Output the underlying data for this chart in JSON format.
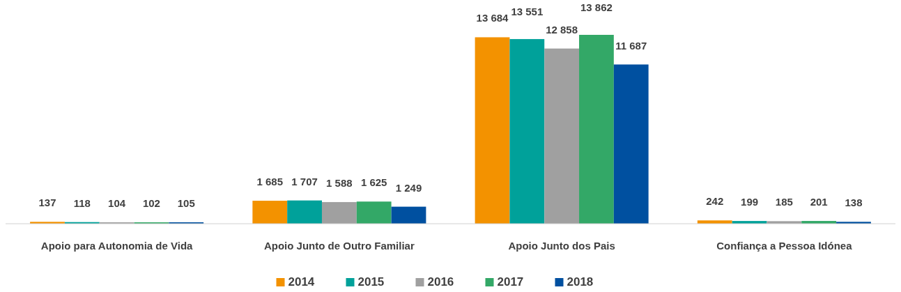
{
  "chart_data": {
    "type": "bar",
    "categories": [
      "Apoio para Autonomia de Vida",
      "Apoio Junto de Outro Familiar",
      "Apoio Junto dos Pais",
      "Confiança a Pessoa Idónea"
    ],
    "series": [
      {
        "name": "2014",
        "color": "#f39200",
        "values": [
          137,
          1685,
          13684,
          242
        ],
        "value_labels": [
          "137",
          "1 685",
          "13 684",
          "242"
        ]
      },
      {
        "name": "2015",
        "color": "#00a19a",
        "values": [
          118,
          1707,
          13551,
          199
        ],
        "value_labels": [
          "118",
          "1 707",
          "13 551",
          "199"
        ]
      },
      {
        "name": "2016",
        "color": "#a0a0a0",
        "values": [
          104,
          1588,
          12858,
          185
        ],
        "value_labels": [
          "104",
          "1 588",
          "12 858",
          "185"
        ]
      },
      {
        "name": "2017",
        "color": "#33a867",
        "values": [
          102,
          1625,
          13862,
          201
        ],
        "value_labels": [
          "102",
          "1 625",
          "13 862",
          "201"
        ]
      },
      {
        "name": "2018",
        "color": "#0050a0",
        "values": [
          105,
          1249,
          11687,
          138
        ],
        "value_labels": [
          "105",
          "1 249",
          "11 687",
          "138"
        ]
      }
    ],
    "legend": "bottom"
  }
}
